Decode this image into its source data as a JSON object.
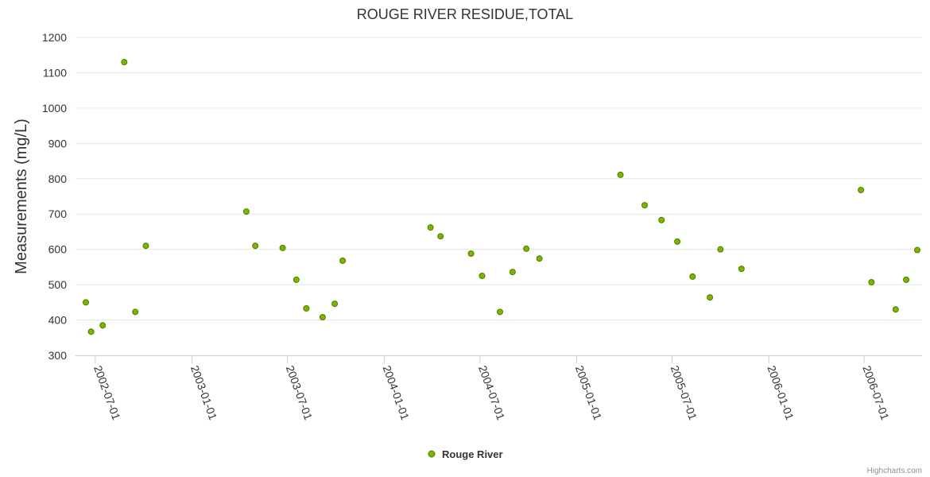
{
  "chart_data": {
    "type": "scatter",
    "title": "ROUGE RIVER RESIDUE,TOTAL",
    "ylabel": "Measurements (mg/L)",
    "xlabel": "",
    "ylim": [
      300,
      1200
    ],
    "yticks": [
      "300",
      "400",
      "500",
      "600",
      "700",
      "800",
      "900",
      "1000",
      "1100",
      "1200"
    ],
    "xlim": [
      "2002-06-13",
      "2006-10-01"
    ],
    "xticks": [
      "2002-07-01",
      "2003-01-01",
      "2003-07-01",
      "2004-01-01",
      "2004-07-01",
      "2005-01-01",
      "2005-07-01",
      "2006-01-01",
      "2006-07-01"
    ],
    "grid": true,
    "legend_position": "bottom-center",
    "marker_color": "#7cb500",
    "marker_edge": "#4e7d00",
    "series": [
      {
        "name": "Rouge River",
        "points": [
          {
            "x": "2002-06-13",
            "y": 450
          },
          {
            "x": "2002-06-23",
            "y": 367
          },
          {
            "x": "2002-07-15",
            "y": 385
          },
          {
            "x": "2002-08-25",
            "y": 1130
          },
          {
            "x": "2002-09-15",
            "y": 423
          },
          {
            "x": "2002-10-05",
            "y": 610
          },
          {
            "x": "2003-04-14",
            "y": 707
          },
          {
            "x": "2003-05-01",
            "y": 610
          },
          {
            "x": "2003-06-22",
            "y": 604
          },
          {
            "x": "2003-07-18",
            "y": 514
          },
          {
            "x": "2003-08-06",
            "y": 433
          },
          {
            "x": "2003-09-06",
            "y": 408
          },
          {
            "x": "2003-09-29",
            "y": 446
          },
          {
            "x": "2003-10-14",
            "y": 568
          },
          {
            "x": "2004-03-29",
            "y": 662
          },
          {
            "x": "2004-04-17",
            "y": 637
          },
          {
            "x": "2004-06-14",
            "y": 588
          },
          {
            "x": "2004-07-05",
            "y": 525
          },
          {
            "x": "2004-08-08",
            "y": 423
          },
          {
            "x": "2004-09-01",
            "y": 536
          },
          {
            "x": "2004-09-27",
            "y": 602
          },
          {
            "x": "2004-10-22",
            "y": 574
          },
          {
            "x": "2005-03-25",
            "y": 811
          },
          {
            "x": "2005-05-10",
            "y": 725
          },
          {
            "x": "2005-06-11",
            "y": 683
          },
          {
            "x": "2005-07-11",
            "y": 622
          },
          {
            "x": "2005-08-09",
            "y": 523
          },
          {
            "x": "2005-09-11",
            "y": 464
          },
          {
            "x": "2005-10-01",
            "y": 600
          },
          {
            "x": "2005-11-10",
            "y": 545
          },
          {
            "x": "2006-06-25",
            "y": 768
          },
          {
            "x": "2006-07-15",
            "y": 507
          },
          {
            "x": "2006-08-30",
            "y": 430
          },
          {
            "x": "2006-09-19",
            "y": 514
          },
          {
            "x": "2006-10-10",
            "y": 598
          }
        ]
      }
    ]
  },
  "credits": "Highcharts.com"
}
